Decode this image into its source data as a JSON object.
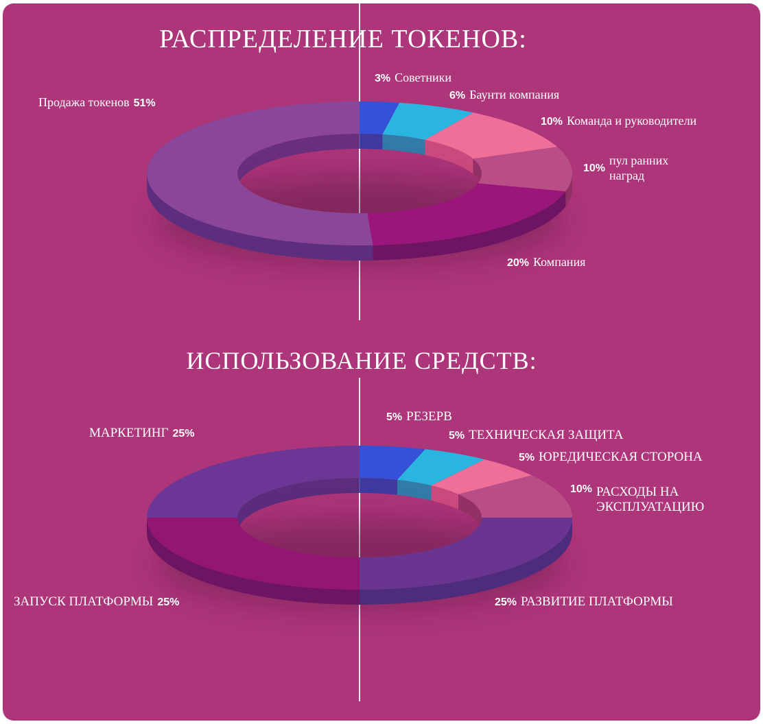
{
  "chart_data": [
    {
      "type": "pie",
      "title": "РАСПРЕДЕЛЕНИЕ ТОКЕНОВ:",
      "labels_position": "outside",
      "series": [
        {
          "label": "Советники",
          "value": 3,
          "pct_text": "3%",
          "color": "#2b3aa6",
          "color_light": "#3451d8"
        },
        {
          "label": "Баунти компания",
          "value": 6,
          "pct_text": "6%",
          "color": "#1b87b0",
          "color_light": "#2ab4e0"
        },
        {
          "label": "Команда и руководители",
          "value": 10,
          "pct_text": "10%",
          "color": "#d04e7c",
          "color_light": "#ef6f98"
        },
        {
          "label": "пул ранних наград",
          "value": 10,
          "pct_text": "10%",
          "color": "#8f3064",
          "color_light": "#b94d85"
        },
        {
          "label": "Компания",
          "value": 20,
          "pct_text": "20%",
          "color": "#6d1563",
          "color_light": "#9b167b"
        },
        {
          "label": "Продажа токенов",
          "value": 51,
          "pct_text": "51%",
          "color": "#5d2e7e",
          "color_light": "#8a4699"
        }
      ]
    },
    {
      "type": "pie",
      "title": "ИСПОЛЬЗОВАНИЕ СРЕДСТВ:",
      "labels_position": "outside",
      "series": [
        {
          "label": "РЕЗЕРВ",
          "value": 5,
          "pct_text": "5%",
          "color": "#2b3aa6",
          "color_light": "#3451d8"
        },
        {
          "label": "ТЕХНИЧЕСКАЯ ЗАЩИТА",
          "value": 5,
          "pct_text": "5%",
          "color": "#1b87b0",
          "color_light": "#2ab4e0"
        },
        {
          "label": "ЮРЕДИЧЕСКАЯ СТОРОНА",
          "value": 5,
          "pct_text": "5%",
          "color": "#d04e7c",
          "color_light": "#ef6f98"
        },
        {
          "label": "РАСХОДЫ НА ЭКСПЛУАТАЦИЮ",
          "value": 10,
          "pct_text": "10%",
          "color": "#8f3064",
          "color_light": "#b94d85"
        },
        {
          "label": "РАЗВИТИЕ ПЛАТФОРМЫ",
          "value": 25,
          "pct_text": "25%",
          "color": "#4e2c7d",
          "color_light": "#6a3590"
        },
        {
          "label": "ЗАПУСК ПЛАТФОРМЫ",
          "value": 25,
          "pct_text": "25%",
          "color": "#6d1563",
          "color_light": "#931772"
        },
        {
          "label": "МАРКЕТИНГ",
          "value": 25,
          "pct_text": "25%",
          "color": "#4e2c7d",
          "color_light": "#6c3697"
        }
      ]
    }
  ]
}
